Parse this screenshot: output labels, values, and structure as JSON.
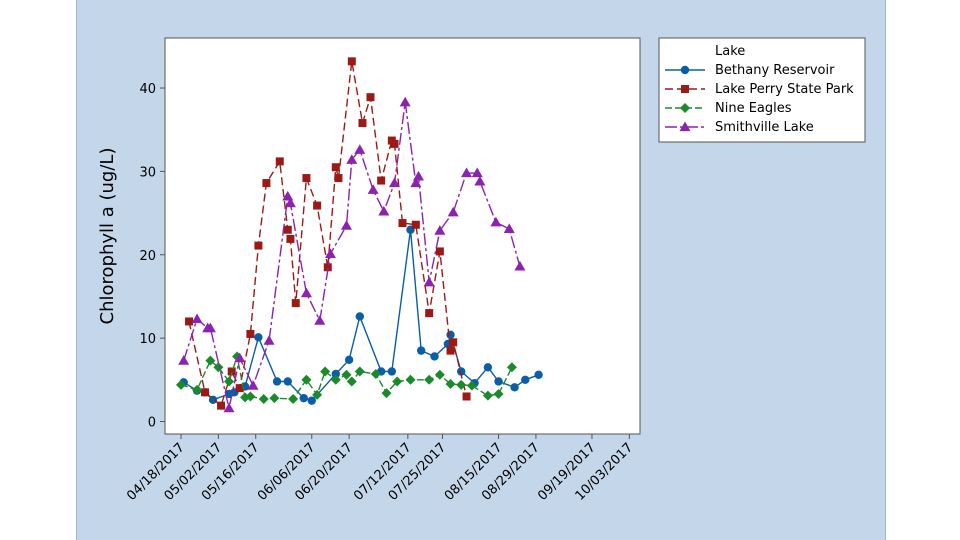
{
  "chart_data": {
    "type": "line",
    "title": "",
    "xlabel": "",
    "ylabel": "Chlorophyll a (ug/L)",
    "ylim": [
      -1.5,
      46
    ],
    "yticks": [
      0,
      10,
      20,
      30,
      40
    ],
    "xlim": [
      -6,
      172
    ],
    "x_tick_labels": [
      "04/18/2017",
      "05/02/2017",
      "05/16/2017",
      "06/06/2017",
      "06/20/2017",
      "07/12/2017",
      "07/25/2017",
      "08/15/2017",
      "08/29/2017",
      "09/19/2017",
      "10/03/2017"
    ],
    "x_tick_days": [
      0,
      14,
      28,
      49,
      63,
      85,
      98,
      119,
      133,
      154,
      168
    ],
    "legend_title": "Lake",
    "legend_position": "top-right",
    "series": [
      {
        "name": "Bethany Reservoir",
        "color": "#0a5ea8",
        "dash": "",
        "marker": "circle",
        "points": [
          [
            1,
            4.7
          ],
          [
            6,
            3.7
          ],
          [
            9,
            3.5
          ],
          [
            12,
            2.6
          ],
          [
            18,
            3.3
          ],
          [
            20,
            3.5
          ],
          [
            24,
            4.2
          ],
          [
            29,
            10.1
          ],
          [
            36,
            4.8
          ],
          [
            40,
            4.8
          ],
          [
            46,
            2.8
          ],
          [
            49,
            2.5
          ],
          [
            58,
            5.7
          ],
          [
            63,
            7.4
          ],
          [
            67,
            12.6
          ],
          [
            75,
            6.0
          ],
          [
            79,
            6.0
          ],
          [
            86,
            23.0
          ],
          [
            90,
            8.5
          ],
          [
            95,
            7.8
          ],
          [
            100,
            9.3
          ],
          [
            101,
            10.4
          ],
          [
            105,
            6.0
          ],
          [
            110,
            4.6
          ],
          [
            115,
            6.5
          ],
          [
            119,
            4.8
          ],
          [
            125,
            4.1
          ],
          [
            129,
            5.0
          ],
          [
            134,
            5.6
          ]
        ]
      },
      {
        "name": "Lake Perry State Park",
        "color": "#9c1a16",
        "dash": "8,4",
        "marker": "square",
        "points": [
          [
            3,
            12.0
          ],
          [
            9,
            3.5
          ],
          [
            15,
            1.9
          ],
          [
            19,
            6.0
          ],
          [
            22,
            4.0
          ],
          [
            26,
            10.5
          ],
          [
            29,
            21.1
          ],
          [
            32,
            28.6
          ],
          [
            37,
            31.2
          ],
          [
            40,
            23.0
          ],
          [
            41,
            21.9
          ],
          [
            43,
            14.2
          ],
          [
            47,
            29.2
          ],
          [
            51,
            25.9
          ],
          [
            55,
            18.5
          ],
          [
            58,
            30.5
          ],
          [
            59,
            29.2
          ],
          [
            64,
            43.2
          ],
          [
            68,
            35.8
          ],
          [
            71,
            38.9
          ],
          [
            75,
            28.9
          ],
          [
            79,
            33.7
          ],
          [
            80,
            33.3
          ],
          [
            83,
            23.8
          ],
          [
            88,
            23.6
          ],
          [
            93,
            13.0
          ],
          [
            97,
            20.4
          ],
          [
            101,
            8.5
          ],
          [
            102,
            9.5
          ],
          [
            107,
            3.0
          ]
        ]
      },
      {
        "name": "Nine Eagles",
        "color": "#1a8a2a",
        "dash": "7,3",
        "marker": "diamond",
        "points": [
          [
            0,
            4.4
          ],
          [
            6,
            3.8
          ],
          [
            11,
            7.3
          ],
          [
            14,
            6.5
          ],
          [
            18,
            4.8
          ],
          [
            21,
            7.8
          ],
          [
            24,
            2.9
          ],
          [
            26,
            3.0
          ],
          [
            31,
            2.7
          ],
          [
            35,
            2.8
          ],
          [
            42,
            2.7
          ],
          [
            47,
            5.0
          ],
          [
            51,
            3.2
          ],
          [
            54,
            6.0
          ],
          [
            58,
            5.0
          ],
          [
            62,
            5.6
          ],
          [
            64,
            4.8
          ],
          [
            67,
            6.0
          ],
          [
            73,
            5.7
          ],
          [
            77,
            3.4
          ],
          [
            81,
            4.8
          ],
          [
            86,
            5.0
          ],
          [
            93,
            5.0
          ],
          [
            97,
            5.6
          ],
          [
            101,
            4.5
          ],
          [
            105,
            4.4
          ],
          [
            109,
            4.3
          ],
          [
            115,
            3.1
          ],
          [
            119,
            3.3
          ],
          [
            124,
            6.5
          ]
        ]
      },
      {
        "name": "Smithville Lake",
        "color": "#8b22b0",
        "dash": "12,3,3,3",
        "marker": "triangle",
        "points": [
          [
            1,
            7.3
          ],
          [
            6,
            12.3
          ],
          [
            10,
            11.2
          ],
          [
            11,
            11.2
          ],
          [
            18,
            1.6
          ],
          [
            22,
            7.6
          ],
          [
            27,
            4.3
          ],
          [
            33,
            9.7
          ],
          [
            40,
            27.0
          ],
          [
            41,
            26.2
          ],
          [
            47,
            15.4
          ],
          [
            52,
            12.1
          ],
          [
            56,
            20.1
          ],
          [
            62,
            23.5
          ],
          [
            64,
            31.4
          ],
          [
            67,
            32.6
          ],
          [
            72,
            27.8
          ],
          [
            76,
            25.2
          ],
          [
            80,
            28.6
          ],
          [
            84,
            38.3
          ],
          [
            88,
            28.6
          ],
          [
            89,
            29.4
          ],
          [
            93,
            16.7
          ],
          [
            97,
            22.9
          ],
          [
            102,
            25.1
          ],
          [
            107,
            29.8
          ],
          [
            111,
            29.8
          ],
          [
            112,
            28.8
          ],
          [
            118,
            23.9
          ],
          [
            123,
            23.1
          ],
          [
            127,
            18.6
          ]
        ]
      }
    ]
  }
}
